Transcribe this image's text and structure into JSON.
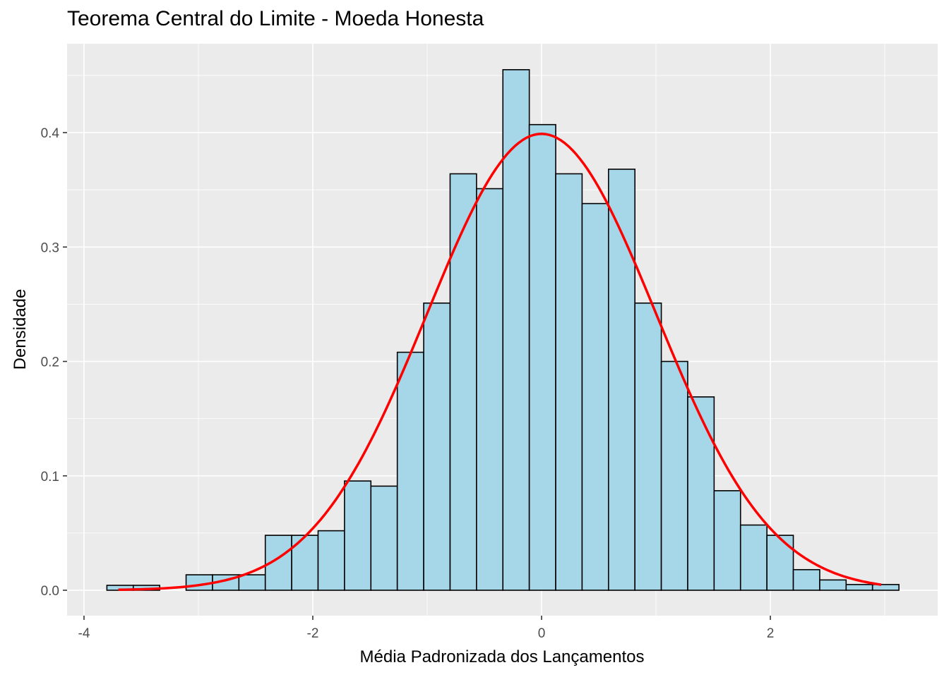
{
  "chart_data": {
    "type": "bar",
    "title": "Teorema Central do Limite - Moeda Honesta",
    "xlabel": "Média Padronizada dos Lançamentos",
    "ylabel": "Densidade",
    "xlim": [
      -4.148,
      3.463
    ],
    "ylim": [
      -0.0222,
      0.4777
    ],
    "x_ticks": [
      -4,
      -2,
      0,
      2
    ],
    "x_tick_labels": [
      "-4",
      "-2",
      "0",
      "2"
    ],
    "y_ticks": [
      0,
      0.1,
      0.2,
      0.3,
      0.4
    ],
    "y_tick_labels": [
      "0.0",
      "0.1",
      "0.2",
      "0.3",
      "0.4"
    ],
    "grid": true,
    "histogram": {
      "bin_start": -3.8,
      "bin_width": 0.2308,
      "values": [
        0.0043,
        0.0043,
        0,
        0.0135,
        0.0135,
        0.0135,
        0.048,
        0.048,
        0.052,
        0.0955,
        0.091,
        0.208,
        0.251,
        0.364,
        0.351,
        0.455,
        0.407,
        0.364,
        0.338,
        0.368,
        0.251,
        0.2,
        0.169,
        0.087,
        0.057,
        0.048,
        0.018,
        0.009,
        0.005,
        0.005
      ],
      "fill": "#A6D7E9",
      "stroke": "#000000"
    },
    "curve": {
      "name": "Normal(0,1) density",
      "x_range": [
        -3.7,
        2.97
      ],
      "mean": 0,
      "sd": 1,
      "color": "#FF0000"
    },
    "panel_background": "#EBEBEB"
  }
}
